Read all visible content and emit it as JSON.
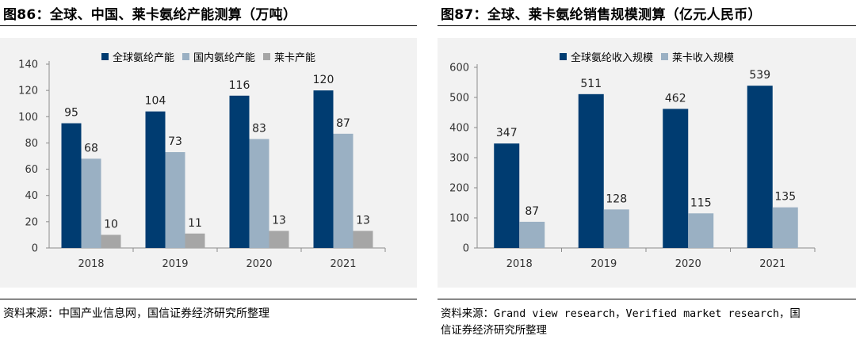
{
  "left": {
    "title": "图86：全球、中国、莱卡氨纶产能测算（万吨）",
    "source": "资料来源：中国产业信息网，国信证券经济研究所整理"
  },
  "right": {
    "title": "图87：全球、莱卡氨纶销售规模测算（亿元人民币）",
    "source_line1": "资料来源：Grand view research，Verified market research，国",
    "source_line2": "信证券经济研究所整理"
  },
  "colors": {
    "dark": "#003c71",
    "light": "#9ab0c3",
    "grey": "#a6a6a6",
    "axis": "#8c8c8c"
  },
  "chart_data": [
    {
      "type": "bar",
      "title": "全球、中国、莱卡氨纶产能测算（万吨）",
      "categories": [
        "2018",
        "2019",
        "2020",
        "2021"
      ],
      "ylim": [
        0,
        140
      ],
      "yticks": [
        0,
        20,
        40,
        60,
        80,
        100,
        120,
        140
      ],
      "series": [
        {
          "name": "全球氨纶产能",
          "values": [
            95,
            104,
            116,
            120
          ],
          "color": "#003c71"
        },
        {
          "name": "国内氨纶产能",
          "values": [
            68,
            73,
            83,
            87
          ],
          "color": "#9ab0c3"
        },
        {
          "name": "莱卡产能",
          "values": [
            10,
            11,
            13,
            13
          ],
          "color": "#a6a6a6"
        }
      ]
    },
    {
      "type": "bar",
      "title": "全球、莱卡氨纶销售规模测算（亿元人民币）",
      "categories": [
        "2018",
        "2019",
        "2020",
        "2021"
      ],
      "ylim": [
        0,
        600
      ],
      "yticks": [
        0,
        100,
        200,
        300,
        400,
        500,
        600
      ],
      "series": [
        {
          "name": "全球氨纶收入规模",
          "values": [
            347,
            511,
            462,
            539
          ],
          "color": "#003c71"
        },
        {
          "name": "莱卡收入规模",
          "values": [
            87,
            128,
            115,
            135
          ],
          "color": "#9ab0c3"
        }
      ]
    }
  ]
}
